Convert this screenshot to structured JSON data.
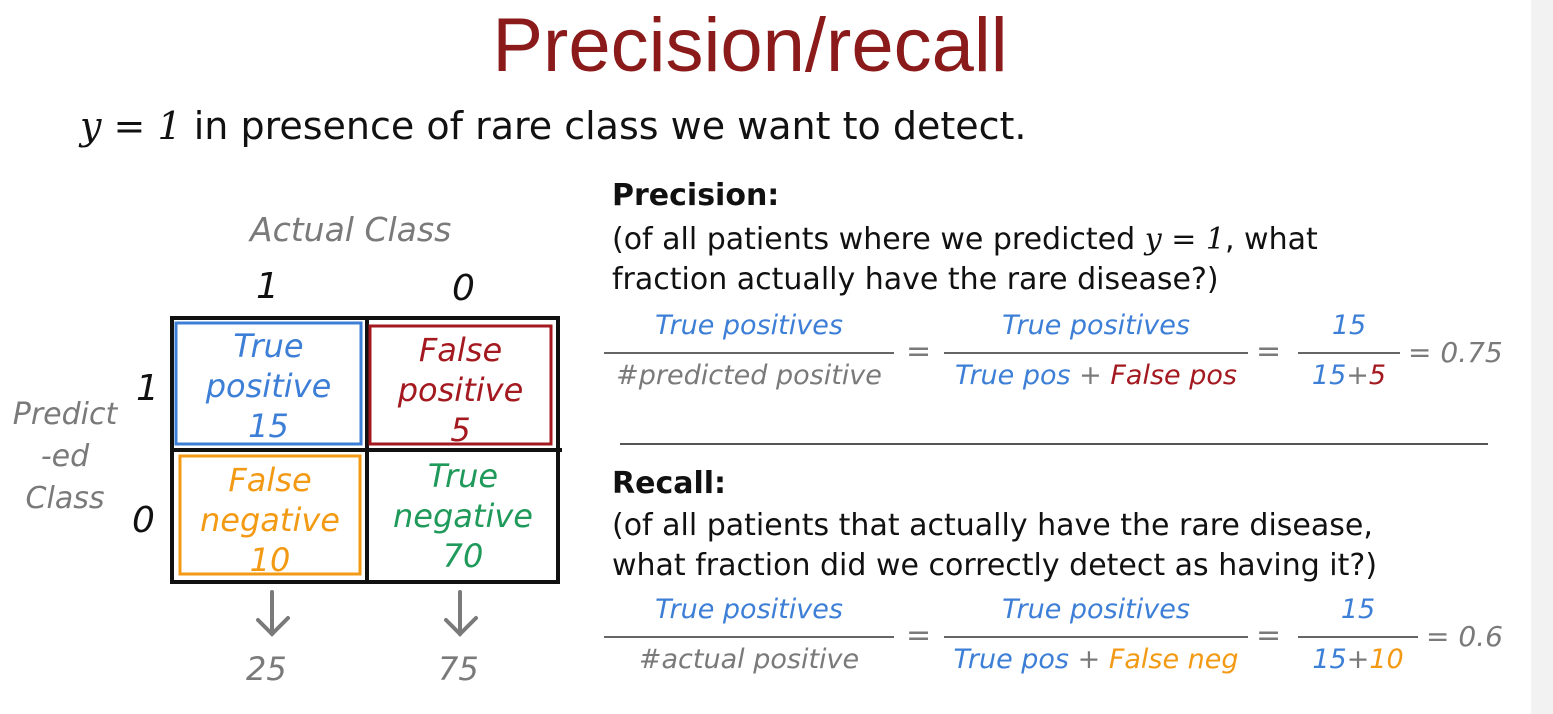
{
  "title": "Precision/recall",
  "subtitle": {
    "math": "y = 1",
    "text": "in presence of rare class we want to detect."
  },
  "matrix": {
    "actual_label": "Actual Class",
    "predicted_label_lines": [
      "Predict",
      "-ed",
      "Class"
    ],
    "col_headers": [
      "1",
      "0"
    ],
    "row_headers": [
      "1",
      "0"
    ],
    "cells": {
      "tp": {
        "line1": "True",
        "line2": "positive",
        "value": "15",
        "color": "#3d7fd6"
      },
      "fp": {
        "line1": "False",
        "line2": "positive",
        "value": "5",
        "color": "#a3191f"
      },
      "fn": {
        "line1": "False",
        "line2": "negative",
        "value": "10",
        "color": "#f39a14"
      },
      "tn": {
        "line1": "True",
        "line2": "negative",
        "value": "70",
        "color": "#1f9a5a"
      }
    },
    "col_totals": [
      "25",
      "75"
    ]
  },
  "precision": {
    "heading": "Precision:",
    "line1_a": "(of all patients where we predicted",
    "line1_math": "y = 1",
    "line1_b": ", what",
    "line2": "fraction actually have the rare disease?)",
    "f1_num": "True positives",
    "f1_den": "#predicted positive",
    "f2_num": "True positives",
    "f2_den_a": "True pos",
    "f2_den_op": "+",
    "f2_den_b": "False pos",
    "f3_num": "15",
    "f3_den_a": "15",
    "f3_den_op": "+",
    "f3_den_b": "5",
    "eq": "=",
    "result": "= 0.75"
  },
  "recall": {
    "heading": "Recall:",
    "line1": "(of all patients that actually have the rare disease,",
    "line2": "what fraction did we correctly detect as having it?)",
    "f1_num": "True positives",
    "f1_den": "#actual positive",
    "f2_num": "True positives",
    "f2_den_a": "True pos",
    "f2_den_op": "+",
    "f2_den_b": "False neg",
    "f3_num": "15",
    "f3_den_a": "15",
    "f3_den_op": "+",
    "f3_den_b": "10",
    "eq": "=",
    "result": "= 0.6"
  }
}
